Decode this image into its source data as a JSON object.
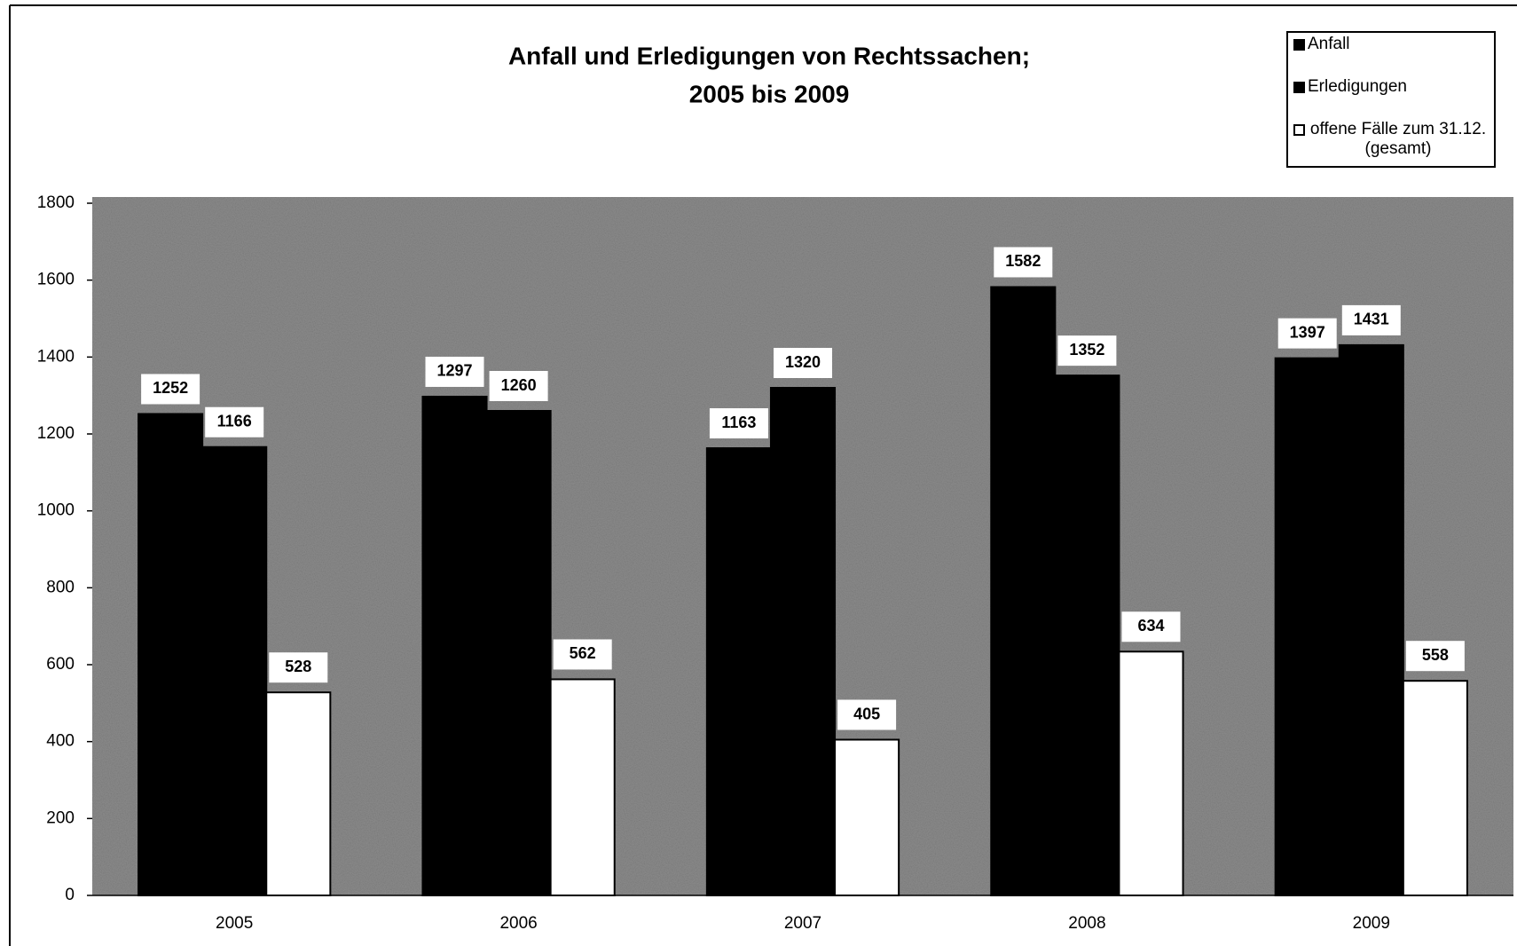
{
  "chart_data": {
    "type": "bar",
    "title": [
      "Anfall und Erledigungen von Rechtssachen;",
      "2005 bis 2009"
    ],
    "categories": [
      "2005",
      "2006",
      "2007",
      "2008",
      "2009"
    ],
    "series": [
      {
        "name": "Anfall",
        "color": "#000000",
        "values": [
          1252,
          1297,
          1163,
          1582,
          1397
        ]
      },
      {
        "name": "Erledigungen",
        "color": "#000000",
        "values": [
          1166,
          1260,
          1320,
          1352,
          1431
        ]
      },
      {
        "name": "offene Fälle zum 31.12. (gesamt)",
        "color": "#ffffff",
        "values": [
          528,
          562,
          405,
          634,
          558
        ]
      }
    ],
    "ylim": [
      0,
      1800
    ],
    "yticks": [
      0,
      200,
      400,
      600,
      800,
      1000,
      1200,
      1400,
      1600,
      1800
    ],
    "legend": "top-right"
  }
}
